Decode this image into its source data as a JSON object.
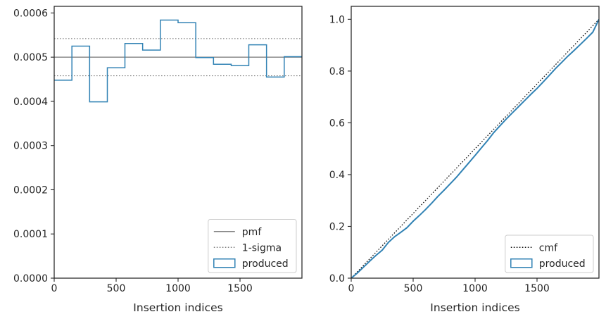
{
  "chart_data": [
    {
      "type": "line",
      "xlabel": "Insertion indices",
      "ylabel": "",
      "xlim": [
        0,
        2000
      ],
      "ylim": [
        0,
        0.000615
      ],
      "xticks": [
        0,
        500,
        1000,
        1500
      ],
      "xtick_labels": [
        "0",
        "500",
        "1000",
        "1500"
      ],
      "yticks": [
        0,
        0.0001,
        0.0002,
        0.0003,
        0.0004,
        0.0005,
        0.0006
      ],
      "ytick_labels": [
        "0.0000",
        "0.0001",
        "0.0002",
        "0.0003",
        "0.0004",
        "0.0005",
        "0.0006"
      ],
      "grid": false,
      "legend_position": "lower-right",
      "reference_lines": [
        {
          "name": "pmf",
          "y": 0.0005,
          "style": "solid",
          "color": "#808080"
        },
        {
          "name": "1-sigma",
          "y": 0.000542,
          "style": "dotted",
          "color": "#808080"
        },
        {
          "name": "1-sigma",
          "y": 0.000458,
          "style": "dotted",
          "color": "#808080"
        }
      ],
      "series": [
        {
          "name": "produced",
          "kind": "histogram-step",
          "color": "#3182b4",
          "bin_edges": [
            0,
            143,
            286,
            429,
            571,
            714,
            857,
            1000,
            1143,
            1286,
            1429,
            1571,
            1714,
            1857,
            2000
          ],
          "values": [
            0.000448,
            0.000525,
            0.000399,
            0.000476,
            0.000531,
            0.000516,
            0.000584,
            0.000578,
            0.000499,
            0.000484,
            0.000481,
            0.000528,
            0.000455,
            0.000501
          ]
        }
      ],
      "legend": [
        {
          "label": "pmf",
          "style": "solid",
          "color": "#808080"
        },
        {
          "label": "1-sigma",
          "style": "dotted",
          "color": "#808080"
        },
        {
          "label": "produced",
          "style": "box",
          "color": "#3182b4"
        }
      ]
    },
    {
      "type": "line",
      "xlabel": "Insertion indices",
      "ylabel": "",
      "xlim": [
        0,
        2000
      ],
      "ylim": [
        0,
        1.05
      ],
      "xticks": [
        0,
        500,
        1000,
        1500
      ],
      "xtick_labels": [
        "0",
        "500",
        "1000",
        "1500"
      ],
      "yticks": [
        0,
        0.2,
        0.4,
        0.6,
        0.8,
        1.0
      ],
      "ytick_labels": [
        "0.0",
        "0.2",
        "0.4",
        "0.6",
        "0.8",
        "1.0"
      ],
      "grid": false,
      "legend_position": "lower-right",
      "series": [
        {
          "name": "cmf",
          "style": "dotted",
          "color": "#111111",
          "x": [
            0,
            2000
          ],
          "y": [
            0,
            1.0
          ]
        },
        {
          "name": "produced",
          "style": "solid",
          "color": "#3182b4",
          "x": [
            0,
            50,
            100,
            150,
            200,
            250,
            300,
            350,
            400,
            450,
            500,
            550,
            600,
            650,
            700,
            750,
            800,
            850,
            900,
            950,
            1000,
            1050,
            1100,
            1150,
            1200,
            1250,
            1300,
            1350,
            1400,
            1450,
            1500,
            1550,
            1600,
            1650,
            1700,
            1750,
            1800,
            1850,
            1900,
            1950,
            2000
          ],
          "y": [
            0,
            0.02,
            0.043,
            0.066,
            0.088,
            0.108,
            0.138,
            0.16,
            0.177,
            0.195,
            0.22,
            0.242,
            0.265,
            0.29,
            0.316,
            0.34,
            0.365,
            0.39,
            0.418,
            0.446,
            0.474,
            0.503,
            0.531,
            0.562,
            0.588,
            0.614,
            0.638,
            0.662,
            0.686,
            0.71,
            0.733,
            0.758,
            0.784,
            0.81,
            0.834,
            0.858,
            0.88,
            0.903,
            0.926,
            0.95,
            1.0
          ]
        }
      ],
      "legend": [
        {
          "label": "cmf",
          "style": "dotted",
          "color": "#111111"
        },
        {
          "label": "produced",
          "style": "box",
          "color": "#3182b4"
        }
      ]
    }
  ]
}
